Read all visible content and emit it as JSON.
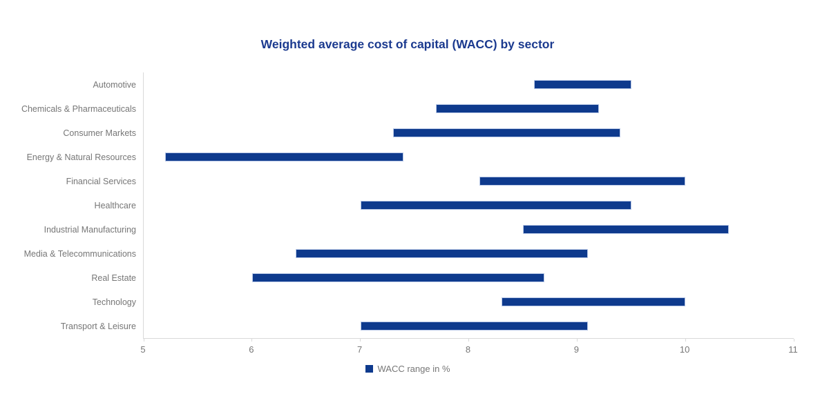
{
  "title": "Weighted average cost of capital (WACC) by sector",
  "legend": {
    "label": "WACC range in %"
  },
  "colors": {
    "bar": "#0e3a8d",
    "bar_border": "#b7c7e6",
    "title": "#1b3a8f",
    "axis_text": "#767676",
    "axis_line": "#d9d9d9"
  },
  "chart_data": {
    "type": "bar",
    "orientation": "horizontal-range",
    "title": "Weighted average cost of capital (WACC) by sector",
    "xlabel": "",
    "ylabel": "",
    "xlim": [
      5,
      11
    ],
    "xticks": [
      5,
      6,
      7,
      8,
      9,
      10,
      11
    ],
    "grid": false,
    "legend_position": "bottom",
    "categories": [
      "Automotive",
      "Chemicals & Pharmaceuticals",
      "Consumer Markets",
      "Energy & Natural Resources",
      "Financial Services",
      "Healthcare",
      "Industrial Manufacturing",
      "Media & Telecommunications",
      "Real Estate",
      "Technology",
      "Transport & Leisure"
    ],
    "series": [
      {
        "name": "WACC range in %",
        "unit": "%",
        "ranges": [
          [
            8.6,
            9.5
          ],
          [
            7.7,
            9.2
          ],
          [
            7.3,
            9.4
          ],
          [
            5.2,
            7.4
          ],
          [
            8.1,
            10.0
          ],
          [
            7.0,
            9.5
          ],
          [
            8.5,
            10.4
          ],
          [
            6.4,
            9.1
          ],
          [
            6.0,
            8.7
          ],
          [
            8.3,
            10.0
          ],
          [
            7.0,
            9.1
          ]
        ]
      }
    ]
  }
}
